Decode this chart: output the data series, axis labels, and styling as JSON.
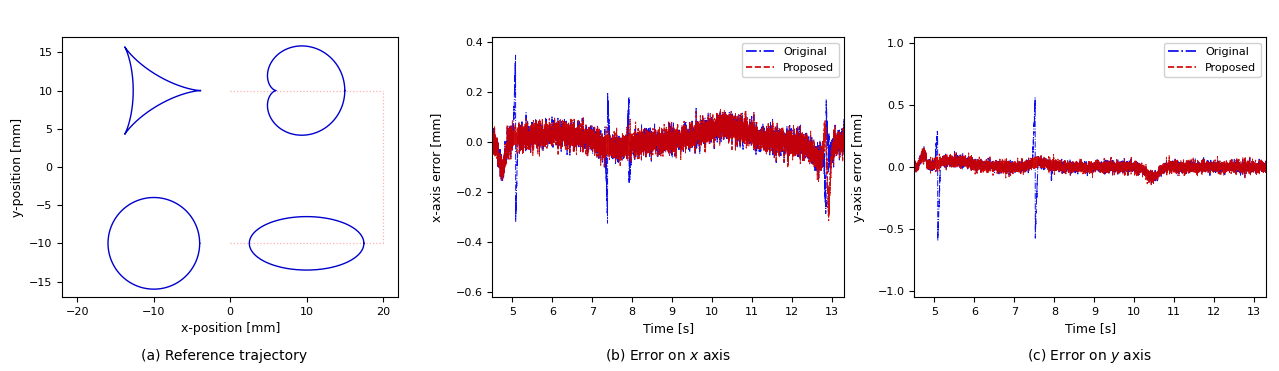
{
  "fig_width": 12.79,
  "fig_height": 3.71,
  "panel_a": {
    "xlim": [
      -22,
      22
    ],
    "ylim": [
      -17,
      17
    ],
    "xlabel": "x-position [mm]",
    "ylabel": "y-position [mm]",
    "caption": "(a) Reference trajectory",
    "line_color": "#0000CC",
    "dotted_color": "#FFB0B0",
    "xticks": [
      -20,
      -10,
      0,
      10,
      20
    ],
    "yticks": [
      -15,
      -10,
      -5,
      0,
      5,
      10,
      15
    ]
  },
  "panel_b": {
    "xlim": [
      4.5,
      13.3
    ],
    "ylim": [
      -0.62,
      0.42
    ],
    "xlabel": "Time [s]",
    "ylabel": "x-axis error [mm]",
    "caption": "(b) Error on $x$ axis",
    "xticks": [
      5,
      6,
      7,
      8,
      9,
      10,
      11,
      12,
      13
    ],
    "yticks": [
      -0.6,
      -0.4,
      -0.2,
      0.0,
      0.2,
      0.4
    ],
    "original_color": "#0000EE",
    "proposed_color": "#CC0000"
  },
  "panel_c": {
    "xlim": [
      4.5,
      13.3
    ],
    "ylim": [
      -1.05,
      1.05
    ],
    "xlabel": "Time [s]",
    "ylabel": "y-axis error [mm]",
    "caption": "(c) Error on $y$ axis",
    "xticks": [
      5,
      6,
      7,
      8,
      9,
      10,
      11,
      12,
      13
    ],
    "yticks": [
      -1.0,
      -0.5,
      0.0,
      0.5,
      1.0
    ],
    "original_color": "#0000EE",
    "proposed_color": "#CC0000"
  },
  "legend_original_label": "Original",
  "legend_proposed_label": "Proposed"
}
